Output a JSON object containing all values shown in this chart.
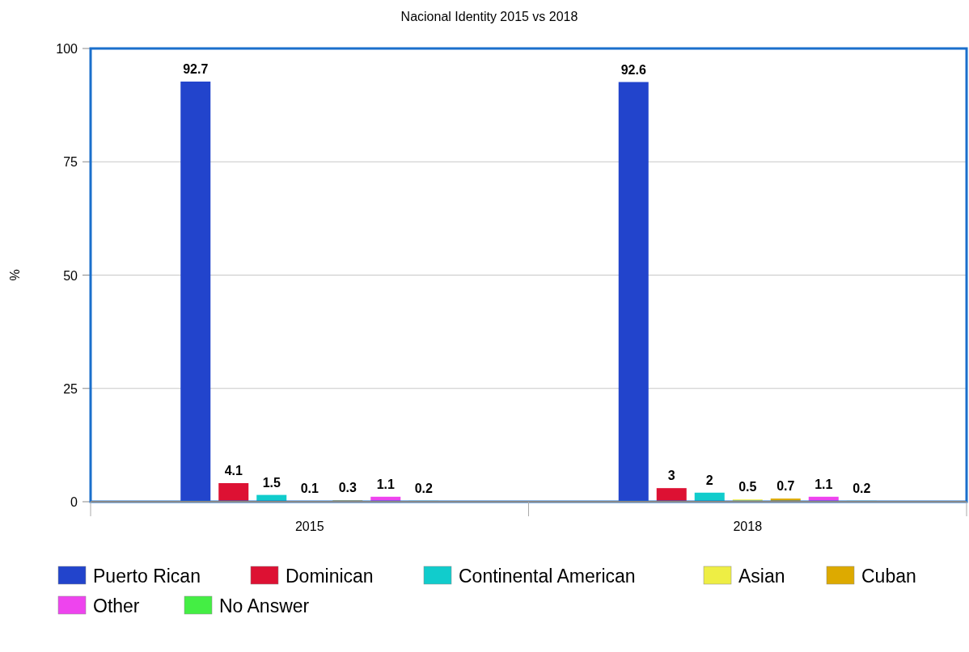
{
  "chart_data": {
    "type": "bar",
    "title": "Nacional Identity 2015 vs 2018",
    "ylabel": "%",
    "categories": [
      "2015",
      "2018"
    ],
    "series": [
      {
        "name": "Puerto Rican",
        "color": "#2244cc",
        "values": [
          92.7,
          92.6
        ]
      },
      {
        "name": "Dominican",
        "color": "#dd1133",
        "values": [
          4.1,
          3
        ]
      },
      {
        "name": "Continental American",
        "color": "#11cccc",
        "values": [
          1.5,
          2
        ]
      },
      {
        "name": "Asian",
        "color": "#eeee44",
        "values": [
          0.1,
          0.5
        ]
      },
      {
        "name": "Cuban",
        "color": "#ddaa00",
        "values": [
          0.3,
          0.7
        ]
      },
      {
        "name": "Other",
        "color": "#ee44ee",
        "values": [
          1.1,
          1.1
        ]
      },
      {
        "name": "No Answer",
        "color": "#44ee44",
        "values": [
          0.2,
          0.2
        ]
      }
    ],
    "ylim": [
      0,
      100
    ],
    "yticks": [
      0,
      25,
      50,
      75,
      100
    ],
    "grid": "y",
    "legend": "bottom",
    "data_labels": true
  }
}
